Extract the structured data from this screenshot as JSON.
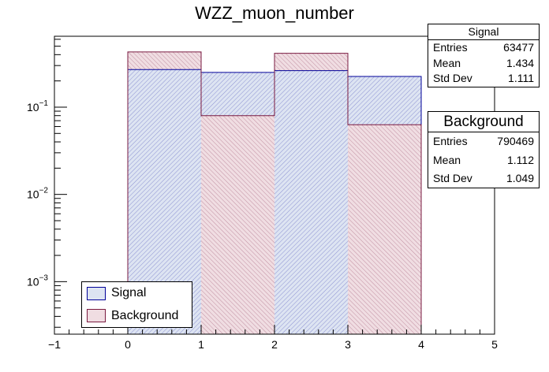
{
  "chart_data": {
    "type": "bar",
    "title": "WZZ_muon_number",
    "xlabel": "",
    "ylabel": "",
    "xlim": [
      -1,
      5
    ],
    "ylim": [
      0.00025,
      0.65
    ],
    "yscale": "log",
    "grid": false,
    "legend_position": "bottom-left",
    "x_ticks": [
      "−1",
      "0",
      "1",
      "2",
      "3",
      "4",
      "5"
    ],
    "y_ticks": [
      {
        "value": 0.1,
        "base": "10",
        "exp": "−1"
      },
      {
        "value": 0.01,
        "base": "10",
        "exp": "−2"
      },
      {
        "value": 0.001,
        "base": "10",
        "exp": "−3"
      }
    ],
    "bin_edges": [
      0,
      1,
      2,
      3,
      4
    ],
    "series": [
      {
        "name": "Signal",
        "values": [
          0.27,
          0.25,
          0.262,
          0.225
        ],
        "fill_color": "#dde4f2",
        "line_color": "#000099"
      },
      {
        "name": "Background",
        "values": [
          0.43,
          0.08,
          0.415,
          0.063
        ],
        "fill_color": "#f0dde2",
        "line_color": "#7a1a40"
      }
    ]
  },
  "stats_signal": {
    "title": "Signal",
    "rows": [
      {
        "label": "Entries",
        "value": "63477"
      },
      {
        "label": "Mean",
        "value": "1.434"
      },
      {
        "label": "Std Dev",
        "value": "1.111"
      }
    ]
  },
  "stats_background": {
    "title": "Background",
    "rows": [
      {
        "label": "Entries",
        "value": "790469"
      },
      {
        "label": "Mean",
        "value": "1.112"
      },
      {
        "label": "Std Dev",
        "value": "1.049"
      }
    ]
  },
  "legend": {
    "items": [
      {
        "label": "Signal",
        "fill": "#dde4f2",
        "border": "#000099"
      },
      {
        "label": "Background",
        "fill": "#f0dde2",
        "border": "#7a1a40"
      }
    ]
  }
}
